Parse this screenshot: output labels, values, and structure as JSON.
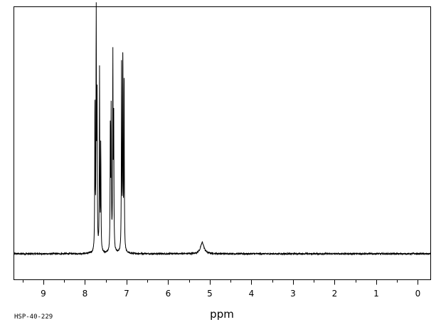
{
  "chart_data": {
    "type": "line",
    "title": "",
    "xlabel": "ppm",
    "ylabel": "",
    "spectrum_id": "HSP-40-229",
    "xlim": [
      9.7,
      -0.3
    ],
    "x_reversed": true,
    "grid": false,
    "x_ticks": [
      9,
      8,
      7,
      6,
      5,
      4,
      3,
      2,
      1,
      0
    ],
    "x_tick_labels": [
      "9",
      "8",
      "7",
      "6",
      "5",
      "4",
      "3",
      "2",
      "1",
      "0"
    ],
    "ylim": [
      0,
      1
    ],
    "baseline": 0.05,
    "noise_amplitude": 0.003,
    "series": [
      {
        "peaks": [
          {
            "ppm": 7.76,
            "height": 0.66
          },
          {
            "ppm": 7.73,
            "height": 1.0
          },
          {
            "ppm": 7.71,
            "height": 0.69
          },
          {
            "ppm": 7.65,
            "height": 0.78
          },
          {
            "ppm": 7.62,
            "height": 0.48
          },
          {
            "ppm": 7.39,
            "height": 0.57
          },
          {
            "ppm": 7.37,
            "height": 0.61
          },
          {
            "ppm": 7.33,
            "height": 0.83
          },
          {
            "ppm": 7.31,
            "height": 0.61
          },
          {
            "ppm": 7.12,
            "height": 0.81
          },
          {
            "ppm": 7.09,
            "height": 0.86
          },
          {
            "ppm": 7.06,
            "height": 0.76
          }
        ],
        "broad_peaks": [
          {
            "ppm": 5.18,
            "height": 0.045,
            "width": 0.05
          }
        ]
      }
    ]
  }
}
